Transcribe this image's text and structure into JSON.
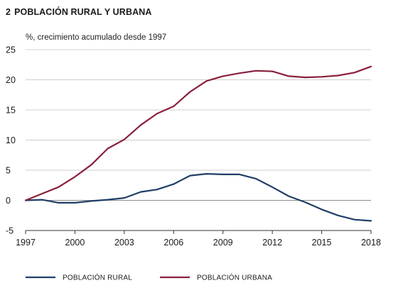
{
  "header": {
    "number": "2",
    "title": "POBLACIÓN RURAL Y URBANA",
    "subtitle": "%, crecimiento acumulado desde 1997"
  },
  "chart_data": {
    "type": "line",
    "x": [
      1997,
      1998,
      1999,
      2000,
      2001,
      2002,
      2003,
      2004,
      2005,
      2006,
      2007,
      2008,
      2009,
      2010,
      2011,
      2012,
      2013,
      2014,
      2015,
      2016,
      2017,
      2018
    ],
    "series": [
      {
        "name": "POBLACIÓN RURAL",
        "color": "#1f3f66",
        "values": [
          0,
          0.1,
          -0.4,
          -0.4,
          -0.1,
          0.1,
          0.4,
          1.4,
          1.8,
          2.7,
          4.1,
          4.4,
          4.3,
          4.3,
          3.6,
          2.2,
          0.7,
          -0.3,
          -1.5,
          -2.5,
          -3.2,
          -3.4
        ]
      },
      {
        "name": "POBLACIÓN URBANA",
        "color": "#8a1f3b",
        "values": [
          0,
          1.1,
          2.2,
          3.9,
          5.9,
          8.6,
          10.1,
          12.5,
          14.4,
          15.6,
          18.0,
          19.8,
          20.6,
          21.1,
          21.5,
          21.4,
          20.6,
          20.4,
          20.5,
          20.7,
          21.2,
          22.2
        ]
      }
    ],
    "xticks": [
      "1997",
      "2000",
      "2003",
      "2006",
      "2009",
      "2012",
      "2015",
      "2018"
    ],
    "yticks": [
      "25",
      "20",
      "15",
      "10",
      "5",
      "0",
      "-5"
    ],
    "xlim": [
      1997,
      2018
    ],
    "ylim": [
      -5,
      25
    ],
    "grid": true,
    "legend_position": "bottom"
  }
}
